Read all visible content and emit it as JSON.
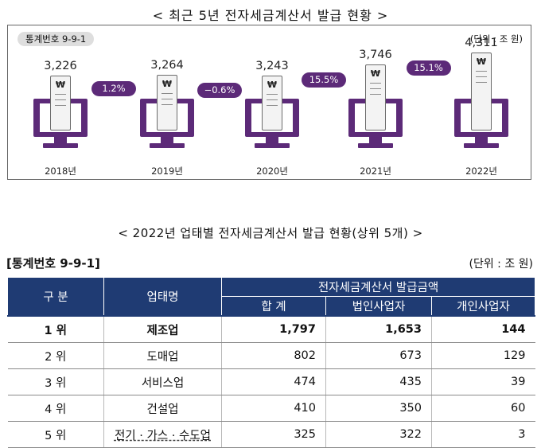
{
  "chart_title": "< 최근 5년 전자세금계산서 발급 현황 >",
  "chart_stat_label": "통계번호 9-9-1",
  "chart_unit": "(단위 : 조 원)",
  "receipt_symbol": "₩",
  "chart_data": {
    "type": "bar",
    "title": "< 최근 5년 전자세금계산서 발급 현황 >",
    "categories": [
      "2018년",
      "2019년",
      "2020년",
      "2021년",
      "2022년"
    ],
    "values": [
      3226,
      3264,
      3243,
      3746,
      4311
    ],
    "value_labels": [
      "3,226",
      "3,264",
      "3,243",
      "3,746",
      "4,311"
    ],
    "growth_labels": [
      "1.2%",
      "−0.6%",
      "15.5%",
      "15.1%"
    ],
    "unit": "(단위 : 조 원)",
    "accent_color": "#5c2a78"
  },
  "table_title": "< 2022년 업태별 전자세금계산서 발급 현황(상위 5개) >",
  "table_stat_label": "[통계번호 9-9-1]",
  "table_unit": "(단위 : 조 원)",
  "table": {
    "header_top": [
      "구 분",
      "업태명",
      "전자세금계산서 발급금액"
    ],
    "header_sub": [
      "합 계",
      "법인사업자",
      "개인사업자"
    ],
    "rows": [
      {
        "rank": "1 위",
        "name": "제조업",
        "total": "1,797",
        "corp": "1,653",
        "indiv": "144"
      },
      {
        "rank": "2 위",
        "name": "도매업",
        "total": "802",
        "corp": "673",
        "indiv": "129"
      },
      {
        "rank": "3 위",
        "name": "서비스업",
        "total": "474",
        "corp": "435",
        "indiv": "39"
      },
      {
        "rank": "4 위",
        "name": "건설업",
        "total": "410",
        "corp": "350",
        "indiv": "60"
      },
      {
        "rank": "5 위",
        "name": "전기 · 가스 · 수도업",
        "total": "325",
        "corp": "322",
        "indiv": "3"
      }
    ],
    "header_color": "#1f3b73"
  }
}
